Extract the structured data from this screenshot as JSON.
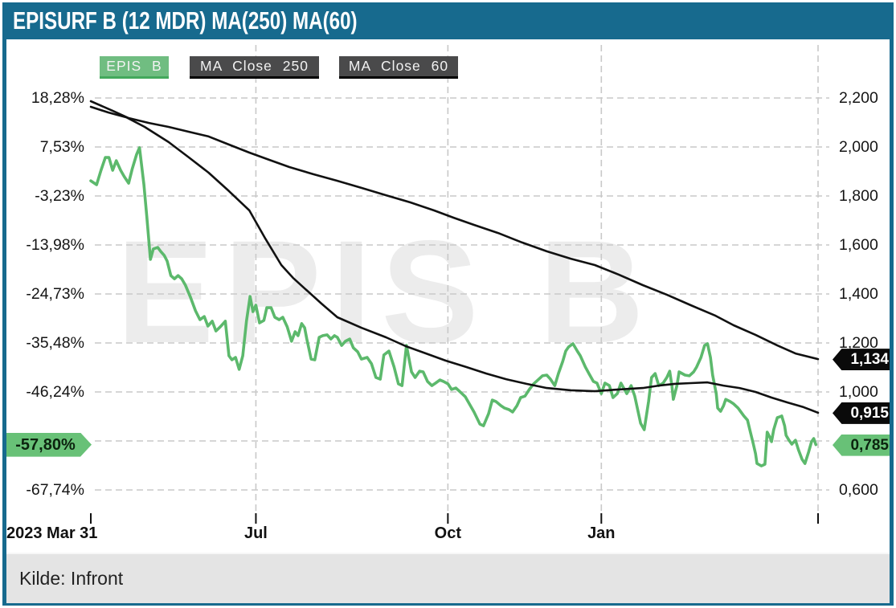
{
  "header": {
    "title": "EPISURF B (12 MDR) MA(250) MA(60)"
  },
  "legend": [
    {
      "label": "EPIS B"
    },
    {
      "label": "MA Close 250"
    },
    {
      "label": "MA Close 60"
    }
  ],
  "watermark": "EPIS B",
  "footer": {
    "source": "Kilde: Infront"
  },
  "colors": {
    "accent_teal": "#176a8e",
    "series_green": "#5cb96c",
    "series_black": "#111111",
    "badge_green": "#68c177",
    "badge_black": "#0a0a0a",
    "gridline": "#c9c9c9"
  },
  "axes": {
    "left_ticks": [
      {
        "text": "18,28%",
        "price": 2.2
      },
      {
        "text": "7,53%",
        "price": 2.0
      },
      {
        "text": "-3,23%",
        "price": 1.8
      },
      {
        "text": "-13,98%",
        "price": 1.6
      },
      {
        "text": "-24,73%",
        "price": 1.4
      },
      {
        "text": "-35,48%",
        "price": 1.2
      },
      {
        "text": "-46,24%",
        "price": 1.0
      },
      {
        "text": "-67,74%",
        "price": 0.6
      }
    ],
    "right_ticks": [
      {
        "text": "2,200",
        "price": 2.2
      },
      {
        "text": "2,000",
        "price": 2.0
      },
      {
        "text": "1,800",
        "price": 1.8
      },
      {
        "text": "1,600",
        "price": 1.6
      },
      {
        "text": "1,400",
        "price": 1.4
      },
      {
        "text": "1,200",
        "price": 1.2
      },
      {
        "text": "1,000",
        "price": 1.0
      },
      {
        "text": "0,600",
        "price": 0.6
      }
    ],
    "h_gridline_prices": [
      2.2,
      2.0,
      1.8,
      1.6,
      1.4,
      1.2,
      1.0,
      0.8,
      0.6
    ],
    "x_ticks": [
      {
        "label": "2023 Mar 31",
        "t": 0,
        "align": "left"
      },
      {
        "label": "Jul",
        "t": 0.227
      },
      {
        "label": "Oct",
        "t": 0.491
      },
      {
        "label": "Jan",
        "t": 0.702
      },
      {
        "label": "",
        "t": 1
      }
    ]
  },
  "badges": {
    "left": [
      {
        "text": "-57,80%",
        "price": 0.785
      }
    ],
    "right": [
      {
        "text": "1,134",
        "price": 1.134,
        "theme": "dark"
      },
      {
        "text": "0,915",
        "price": 0.915,
        "theme": "dark"
      },
      {
        "text": "0,785",
        "price": 0.785,
        "theme": "green"
      }
    ]
  },
  "chart_data": {
    "type": "line",
    "title": "EPISURF B (12 MDR) MA(250) MA(60)",
    "x_range_label": [
      "2023 Mar 31",
      "Jul",
      "Oct",
      "Jan"
    ],
    "y_right_range": [
      0.6,
      2.2
    ],
    "y_left_percent_range": [
      -67.74,
      18.28
    ],
    "base_price": 1.86,
    "grid": true,
    "legend_position": "top",
    "series": [
      {
        "name": "EPIS B",
        "color": "#5cb96c",
        "width": 3.6,
        "points": [
          [
            0,
            1.862
          ],
          [
            0.008,
            1.846
          ],
          [
            0.014,
            1.905
          ],
          [
            0.02,
            1.957
          ],
          [
            0.025,
            1.957
          ],
          [
            0.03,
            1.905
          ],
          [
            0.035,
            1.944
          ],
          [
            0.041,
            1.905
          ],
          [
            0.046,
            1.879
          ],
          [
            0.052,
            1.852
          ],
          [
            0.057,
            1.911
          ],
          [
            0.063,
            1.97
          ],
          [
            0.067,
            1.997
          ],
          [
            0.073,
            1.846
          ],
          [
            0.077,
            1.715
          ],
          [
            0.082,
            1.541
          ],
          [
            0.086,
            1.584
          ],
          [
            0.092,
            1.59
          ],
          [
            0.096,
            1.574
          ],
          [
            0.101,
            1.557
          ],
          [
            0.105,
            1.534
          ],
          [
            0.11,
            1.475
          ],
          [
            0.115,
            1.462
          ],
          [
            0.12,
            1.475
          ],
          [
            0.125,
            1.462
          ],
          [
            0.13,
            1.436
          ],
          [
            0.137,
            1.387
          ],
          [
            0.144,
            1.331
          ],
          [
            0.15,
            1.295
          ],
          [
            0.156,
            1.308
          ],
          [
            0.161,
            1.269
          ],
          [
            0.167,
            1.289
          ],
          [
            0.172,
            1.249
          ],
          [
            0.178,
            1.266
          ],
          [
            0.185,
            1.289
          ],
          [
            0.19,
            1.148
          ],
          [
            0.194,
            1.131
          ],
          [
            0.199,
            1.141
          ],
          [
            0.204,
            1.092
          ],
          [
            0.209,
            1.148
          ],
          [
            0.214,
            1.289
          ],
          [
            0.219,
            1.39
          ],
          [
            0.223,
            1.328
          ],
          [
            0.227,
            1.354
          ],
          [
            0.232,
            1.282
          ],
          [
            0.238,
            1.292
          ],
          [
            0.242,
            1.344
          ],
          [
            0.248,
            1.344
          ],
          [
            0.253,
            1.305
          ],
          [
            0.259,
            1.295
          ],
          [
            0.264,
            1.305
          ],
          [
            0.27,
            1.266
          ],
          [
            0.276,
            1.207
          ],
          [
            0.281,
            1.246
          ],
          [
            0.285,
            1.23
          ],
          [
            0.29,
            1.279
          ],
          [
            0.294,
            1.262
          ],
          [
            0.297,
            1.216
          ],
          [
            0.303,
            1.134
          ],
          [
            0.308,
            1.131
          ],
          [
            0.314,
            1.223
          ],
          [
            0.319,
            1.23
          ],
          [
            0.325,
            1.233
          ],
          [
            0.33,
            1.216
          ],
          [
            0.335,
            1.23
          ],
          [
            0.339,
            1.223
          ],
          [
            0.345,
            1.19
          ],
          [
            0.35,
            1.207
          ],
          [
            0.356,
            1.216
          ],
          [
            0.361,
            1.18
          ],
          [
            0.367,
            1.164
          ],
          [
            0.372,
            1.134
          ],
          [
            0.38,
            1.141
          ],
          [
            0.386,
            1.115
          ],
          [
            0.392,
            1.059
          ],
          [
            0.398,
            1.052
          ],
          [
            0.403,
            1.151
          ],
          [
            0.41,
            1.167
          ],
          [
            0.417,
            1.102
          ],
          [
            0.423,
            1.033
          ],
          [
            0.428,
            1.026
          ],
          [
            0.434,
            1.19
          ],
          [
            0.441,
            1.082
          ],
          [
            0.446,
            1.059
          ],
          [
            0.452,
            1.085
          ],
          [
            0.457,
            1.082
          ],
          [
            0.463,
            1.043
          ],
          [
            0.469,
            1.026
          ],
          [
            0.474,
            1.036
          ],
          [
            0.48,
            1.049
          ],
          [
            0.485,
            1.043
          ],
          [
            0.491,
            1.033
          ],
          [
            0.496,
            1.01
          ],
          [
            0.502,
            1.016
          ],
          [
            0.508,
            1.0
          ],
          [
            0.515,
            0.98
          ],
          [
            0.522,
            0.944
          ],
          [
            0.527,
            0.918
          ],
          [
            0.535,
            0.869
          ],
          [
            0.54,
            0.862
          ],
          [
            0.547,
            0.911
          ],
          [
            0.552,
            0.967
          ],
          [
            0.557,
            0.961
          ],
          [
            0.564,
            0.944
          ],
          [
            0.569,
            0.934
          ],
          [
            0.575,
            0.928
          ],
          [
            0.58,
            0.918
          ],
          [
            0.586,
            0.944
          ],
          [
            0.591,
            0.977
          ],
          [
            0.597,
            0.983
          ],
          [
            0.603,
            1.01
          ],
          [
            0.609,
            1.033
          ],
          [
            0.616,
            1.052
          ],
          [
            0.621,
            1.066
          ],
          [
            0.627,
            1.069
          ],
          [
            0.632,
            1.052
          ],
          [
            0.638,
            1.026
          ],
          [
            0.643,
            1.075
          ],
          [
            0.649,
            1.125
          ],
          [
            0.653,
            1.167
          ],
          [
            0.657,
            1.184
          ],
          [
            0.663,
            1.197
          ],
          [
            0.669,
            1.167
          ],
          [
            0.673,
            1.148
          ],
          [
            0.68,
            1.102
          ],
          [
            0.685,
            1.075
          ],
          [
            0.691,
            1.043
          ],
          [
            0.696,
            1.036
          ],
          [
            0.702,
            0.993
          ],
          [
            0.707,
            1.036
          ],
          [
            0.713,
            1.026
          ],
          [
            0.718,
            0.977
          ],
          [
            0.724,
            0.993
          ],
          [
            0.729,
            1.036
          ],
          [
            0.737,
            0.993
          ],
          [
            0.743,
            1.026
          ],
          [
            0.748,
            0.983
          ],
          [
            0.756,
            0.872
          ],
          [
            0.761,
            0.846
          ],
          [
            0.767,
            0.961
          ],
          [
            0.771,
            1.059
          ],
          [
            0.776,
            1.075
          ],
          [
            0.781,
            1.026
          ],
          [
            0.787,
            1.036
          ],
          [
            0.792,
            1.059
          ],
          [
            0.796,
            1.085
          ],
          [
            0.799,
            1.026
          ],
          [
            0.801,
            0.97
          ],
          [
            0.806,
            1.026
          ],
          [
            0.809,
            1.082
          ],
          [
            0.817,
            1.069
          ],
          [
            0.823,
            1.066
          ],
          [
            0.829,
            1.082
          ],
          [
            0.833,
            1.102
          ],
          [
            0.839,
            1.141
          ],
          [
            0.844,
            1.19
          ],
          [
            0.848,
            1.197
          ],
          [
            0.852,
            1.141
          ],
          [
            0.855,
            1.069
          ],
          [
            0.86,
            0.993
          ],
          [
            0.862,
            0.934
          ],
          [
            0.866,
            0.921
          ],
          [
            0.87,
            0.944
          ],
          [
            0.873,
            0.97
          ],
          [
            0.879,
            0.961
          ],
          [
            0.884,
            0.951
          ],
          [
            0.89,
            0.934
          ],
          [
            0.894,
            0.918
          ],
          [
            0.898,
            0.902
          ],
          [
            0.903,
            0.885
          ],
          [
            0.907,
            0.836
          ],
          [
            0.911,
            0.787
          ],
          [
            0.914,
            0.748
          ],
          [
            0.916,
            0.708
          ],
          [
            0.922,
            0.698
          ],
          [
            0.925,
            0.702
          ],
          [
            0.927,
            0.705
          ],
          [
            0.93,
            0.836
          ],
          [
            0.934,
            0.813
          ],
          [
            0.936,
            0.797
          ],
          [
            0.939,
            0.846
          ],
          [
            0.944,
            0.895
          ],
          [
            0.947,
            0.898
          ],
          [
            0.95,
            0.902
          ],
          [
            0.954,
            0.862
          ],
          [
            0.956,
            0.823
          ],
          [
            0.96,
            0.803
          ],
          [
            0.964,
            0.787
          ],
          [
            0.967,
            0.797
          ],
          [
            0.969,
            0.803
          ],
          [
            0.973,
            0.764
          ],
          [
            0.978,
            0.725
          ],
          [
            0.982,
            0.708
          ],
          [
            0.987,
            0.754
          ],
          [
            0.991,
            0.797
          ],
          [
            0.994,
            0.81
          ],
          [
            0.997,
            0.785
          ]
        ]
      },
      {
        "name": "MA Close 250",
        "color": "#111111",
        "width": 2.6,
        "points": [
          [
            0,
            2.187
          ],
          [
            0.03,
            2.148
          ],
          [
            0.052,
            2.118
          ],
          [
            0.08,
            2.098
          ],
          [
            0.107,
            2.082
          ],
          [
            0.135,
            2.062
          ],
          [
            0.162,
            2.043
          ],
          [
            0.19,
            2.01
          ],
          [
            0.218,
            1.977
          ],
          [
            0.245,
            1.948
          ],
          [
            0.273,
            1.918
          ],
          [
            0.306,
            1.889
          ],
          [
            0.339,
            1.862
          ],
          [
            0.372,
            1.833
          ],
          [
            0.406,
            1.803
          ],
          [
            0.439,
            1.774
          ],
          [
            0.472,
            1.741
          ],
          [
            0.499,
            1.711
          ],
          [
            0.527,
            1.682
          ],
          [
            0.56,
            1.649
          ],
          [
            0.593,
            1.61
          ],
          [
            0.627,
            1.574
          ],
          [
            0.66,
            1.544
          ],
          [
            0.693,
            1.518
          ],
          [
            0.726,
            1.479
          ],
          [
            0.759,
            1.436
          ],
          [
            0.792,
            1.397
          ],
          [
            0.825,
            1.354
          ],
          [
            0.859,
            1.311
          ],
          [
            0.884,
            1.272
          ],
          [
            0.914,
            1.233
          ],
          [
            0.944,
            1.19
          ],
          [
            0.969,
            1.157
          ],
          [
            1,
            1.134
          ]
        ]
      },
      {
        "name": "MA Close 60",
        "color": "#111111",
        "width": 2.6,
        "points": [
          [
            0,
            2.164
          ],
          [
            0.024,
            2.141
          ],
          [
            0.049,
            2.121
          ],
          [
            0.074,
            2.082
          ],
          [
            0.107,
            2.02
          ],
          [
            0.135,
            1.957
          ],
          [
            0.162,
            1.895
          ],
          [
            0.19,
            1.82
          ],
          [
            0.218,
            1.741
          ],
          [
            0.24,
            1.626
          ],
          [
            0.262,
            1.518
          ],
          [
            0.278,
            1.466
          ],
          [
            0.295,
            1.42
          ],
          [
            0.317,
            1.361
          ],
          [
            0.339,
            1.305
          ],
          [
            0.372,
            1.262
          ],
          [
            0.406,
            1.223
          ],
          [
            0.433,
            1.187
          ],
          [
            0.461,
            1.157
          ],
          [
            0.488,
            1.128
          ],
          [
            0.516,
            1.102
          ],
          [
            0.544,
            1.075
          ],
          [
            0.571,
            1.052
          ],
          [
            0.599,
            1.033
          ],
          [
            0.627,
            1.016
          ],
          [
            0.66,
            1.007
          ],
          [
            0.693,
            1.003
          ],
          [
            0.726,
            1.01
          ],
          [
            0.759,
            1.016
          ],
          [
            0.781,
            1.026
          ],
          [
            0.803,
            1.033
          ],
          [
            0.825,
            1.036
          ],
          [
            0.848,
            1.039
          ],
          [
            0.87,
            1.026
          ],
          [
            0.892,
            1.016
          ],
          [
            0.914,
            1.0
          ],
          [
            0.936,
            0.977
          ],
          [
            0.958,
            0.957
          ],
          [
            0.98,
            0.938
          ],
          [
            1,
            0.915
          ]
        ]
      }
    ]
  }
}
